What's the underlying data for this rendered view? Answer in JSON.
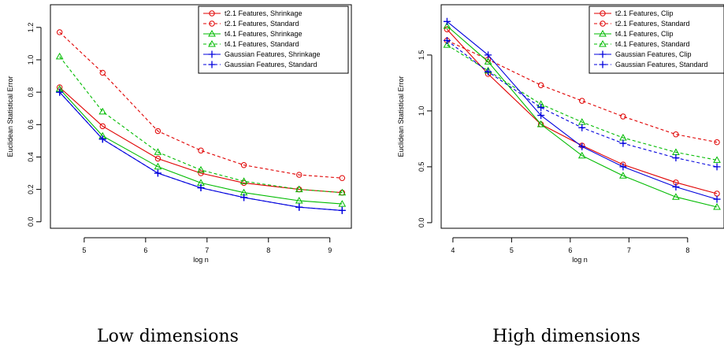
{
  "chart_data": [
    {
      "type": "line",
      "caption": "Low dimensions",
      "xlabel": "log n",
      "ylabel": "Euclidean Statistical Error",
      "xlim": [
        4.45,
        9.35
      ],
      "ylim": [
        -0.04,
        1.34
      ],
      "xticks": [
        "5",
        "6",
        "7",
        "8",
        "9"
      ],
      "yticks": [
        "0.0",
        "0.2",
        "0.4",
        "0.6",
        "0.8",
        "1.0",
        "1.2"
      ],
      "legend_position": "top-right",
      "x": [
        4.6,
        5.3,
        6.2,
        6.9,
        7.6,
        8.5,
        9.2
      ],
      "series": [
        {
          "name": "t2.1 Features, Shrinkage",
          "color": "#e00000",
          "marker": "circle",
          "dashed": false,
          "values": [
            0.83,
            0.59,
            0.39,
            0.3,
            0.24,
            0.2,
            0.18
          ]
        },
        {
          "name": "t2.1 Features, Standard",
          "color": "#e00000",
          "marker": "circle",
          "dashed": true,
          "values": [
            1.17,
            0.92,
            0.56,
            0.44,
            0.35,
            0.29,
            0.27
          ]
        },
        {
          "name": "t4.1 Features, Shrinkage",
          "color": "#00bb00",
          "marker": "triangle",
          "dashed": false,
          "values": [
            0.82,
            0.53,
            0.34,
            0.24,
            0.18,
            0.13,
            0.11
          ]
        },
        {
          "name": "t4.1 Features, Standard",
          "color": "#00bb00",
          "marker": "triangle",
          "dashed": true,
          "values": [
            1.02,
            0.68,
            0.43,
            0.32,
            0.25,
            0.2,
            0.18
          ]
        },
        {
          "name": "Gaussian Features, Shrinkage",
          "color": "#0000dd",
          "marker": "plus",
          "dashed": false,
          "values": [
            0.8,
            0.51,
            0.3,
            0.21,
            0.15,
            0.09,
            0.07
          ]
        },
        {
          "name": "Gaussian Features, Standard",
          "color": "#0000dd",
          "marker": "plus",
          "dashed": true,
          "values": [
            0.8,
            0.51,
            0.3,
            0.21,
            0.15,
            0.09,
            0.07
          ]
        }
      ]
    },
    {
      "type": "line",
      "caption": "High dimensions",
      "xlabel": "log n",
      "ylabel": "Euclidean Statistical Error",
      "xlim": [
        3.8,
        8.62
      ],
      "ylim": [
        -0.05,
        1.95
      ],
      "xticks": [
        "4",
        "5",
        "6",
        "7",
        "8"
      ],
      "yticks": [
        "0.0",
        "0.5",
        "1.0",
        "1.5"
      ],
      "legend_position": "top-right",
      "x": [
        3.9,
        4.6,
        5.5,
        6.2,
        6.9,
        7.8,
        8.5
      ],
      "series": [
        {
          "name": "t2.1 Features, Clip",
          "color": "#e00000",
          "marker": "circle",
          "dashed": false,
          "values": [
            1.73,
            1.33,
            0.88,
            0.69,
            0.52,
            0.36,
            0.26
          ]
        },
        {
          "name": "t2.1 Features, Standard",
          "color": "#e00000",
          "marker": "circle",
          "dashed": true,
          "values": [
            1.63,
            1.46,
            1.23,
            1.09,
            0.95,
            0.79,
            0.72
          ]
        },
        {
          "name": "t4.1 Features, Clip",
          "color": "#00bb00",
          "marker": "triangle",
          "dashed": false,
          "values": [
            1.76,
            1.44,
            0.88,
            0.6,
            0.42,
            0.23,
            0.14
          ]
        },
        {
          "name": "t4.1 Features, Standard",
          "color": "#00bb00",
          "marker": "triangle",
          "dashed": true,
          "values": [
            1.59,
            1.36,
            1.06,
            0.9,
            0.76,
            0.63,
            0.56
          ]
        },
        {
          "name": "Gaussian Features, Clip",
          "color": "#0000dd",
          "marker": "plus",
          "dashed": false,
          "values": [
            1.8,
            1.5,
            0.96,
            0.68,
            0.5,
            0.32,
            0.21
          ]
        },
        {
          "name": "Gaussian Features, Standard",
          "color": "#0000dd",
          "marker": "plus",
          "dashed": true,
          "values": [
            1.63,
            1.35,
            1.03,
            0.85,
            0.71,
            0.58,
            0.5
          ]
        }
      ]
    }
  ]
}
